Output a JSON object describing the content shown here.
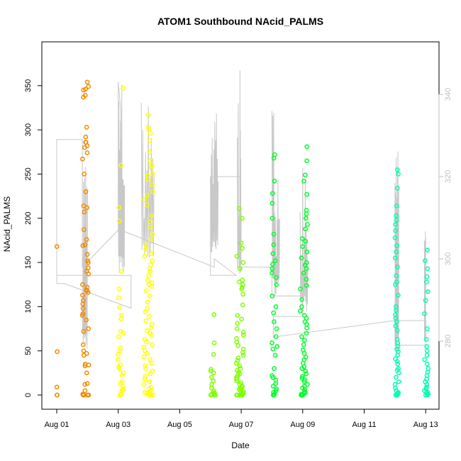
{
  "chart_data": {
    "type": "scatter",
    "title": "ATOM1 Southbound NAcid_PALMS",
    "xlabel": "Date",
    "ylabel": "NAcid_PALMS",
    "x_axis_kind": "date",
    "xlim": [
      "2016-08-01",
      "2016-08-13"
    ],
    "ylim": [
      0,
      360
    ],
    "x_ticks": [
      "2016-08-01",
      "2016-08-03",
      "2016-08-05",
      "2016-08-07",
      "2016-08-09",
      "2016-08-11",
      "2016-08-13"
    ],
    "x_tick_labels": [
      "Aug 01",
      "Aug 03",
      "Aug 05",
      "Aug 07",
      "Aug 09",
      "Aug 11",
      "Aug 13"
    ],
    "y_ticks": [
      0,
      50,
      100,
      150,
      200,
      250,
      300,
      350
    ],
    "y_tick_labels": [
      "0",
      "50",
      "100",
      "150",
      "200",
      "250",
      "300",
      "350"
    ],
    "secondary_axis": {
      "side": "right",
      "color": "#bfbfbf",
      "ticks": [
        280,
        300,
        320,
        340
      ],
      "tick_labels": [
        "280",
        "300",
        "320",
        "340"
      ],
      "ylim": [
        263,
        348
      ],
      "line_color": "#c8c8c8",
      "path": [
        [
          "2016-08-01 00:00",
          316
        ],
        [
          "2016-08-01 00:00",
          325
        ],
        [
          "2016-08-01 00:00",
          294
        ],
        [
          "2016-08-01 06:00",
          294
        ],
        [
          "2016-08-03 10:00",
          288
        ],
        [
          "2016-08-03 10:00",
          296
        ],
        [
          "2016-08-01 00:00",
          296
        ],
        [
          "2016-08-01 00:00",
          329
        ],
        [
          "2016-08-01 20:00",
          329
        ],
        [
          "2016-08-01 20:00",
          298
        ],
        [
          "2016-08-03 00:00",
          307
        ],
        [
          "2016-08-03 00:00",
          343
        ],
        [
          "2016-08-03 02:00",
          336
        ],
        [
          "2016-08-03 02:00",
          307
        ],
        [
          "2016-08-06 03:00",
          298
        ],
        [
          "2016-08-06 03:00",
          300
        ],
        [
          "2016-08-06 20:00",
          296
        ],
        [
          "2016-08-06 00:00",
          296
        ],
        [
          "2016-08-06 00:00",
          320
        ],
        [
          "2016-08-06 23:00",
          320
        ],
        [
          "2016-08-06 23:00",
          298
        ],
        [
          "2016-08-08 00:00",
          298
        ],
        [
          "2016-08-08 00:00",
          291
        ],
        [
          "2016-08-09 00:00",
          291
        ],
        [
          "2016-08-09 00:00",
          286
        ],
        [
          "2016-08-08 01:00",
          286
        ],
        [
          "2016-08-08 01:00",
          281
        ],
        [
          "2016-08-12 00:00",
          285
        ],
        [
          "2016-08-13 00:00",
          285
        ],
        [
          "2016-08-13 00:00",
          279
        ],
        [
          "2016-08-12 00:00",
          279
        ],
        [
          "2016-08-12 00:00",
          284
        ]
      ],
      "spike_bursts": [
        {
          "start": "2016-08-01 20:00",
          "end": "2016-08-02 00:00",
          "low": 278,
          "high": 330
        },
        {
          "start": "2016-08-03 00:00",
          "end": "2016-08-03 05:00",
          "low": 296,
          "high": 346
        },
        {
          "start": "2016-08-03 18:00",
          "end": "2016-08-04 04:00",
          "low": 300,
          "high": 340
        },
        {
          "start": "2016-08-06 00:00",
          "end": "2016-08-06 06:00",
          "low": 300,
          "high": 347
        },
        {
          "start": "2016-08-06 21:00",
          "end": "2016-08-07 00:00",
          "low": 296,
          "high": 346
        },
        {
          "start": "2016-08-08 00:00",
          "end": "2016-08-08 06:00",
          "low": 291,
          "high": 339
        },
        {
          "start": "2016-08-08 22:00",
          "end": "2016-08-09 04:00",
          "low": 286,
          "high": 337
        },
        {
          "start": "2016-08-12 00:00",
          "end": "2016-08-12 03:00",
          "low": 276,
          "high": 328
        },
        {
          "start": "2016-08-12 23:00",
          "end": "2016-08-13 00:00",
          "low": 279,
          "high": 307
        }
      ]
    },
    "series": [
      {
        "color": "#f28a00",
        "clusters": [
          {
            "start": "2016-08-01 00:00",
            "end": "2016-08-01 00:30",
            "values": [
              168,
              49,
              9,
              0,
              0
            ]
          },
          {
            "start": "2016-08-01 20:00",
            "end": "2016-08-02 01:00",
            "values": [
              354,
              349,
              346,
              345,
              339,
              337,
              303,
              292,
              286,
              286,
              282,
              280,
              274,
              267,
              250,
              230,
              214,
              212,
              207,
              187,
              176,
              170,
              169,
              159,
              152,
              150,
              144,
              140,
              137,
              125,
              122,
              119,
              118,
              116,
              113,
              107,
              103,
              98,
              92,
              90,
              85,
              75,
              72,
              57,
              50,
              47,
              45,
              35,
              34,
              33,
              25,
              13,
              12,
              5,
              1,
              0,
              0,
              0,
              0
            ]
          }
        ]
      },
      {
        "color": "#ffff00",
        "clusters": [
          {
            "start": "2016-08-03 00:00",
            "end": "2016-08-03 04:00",
            "values": [
              347,
              260,
              212,
              197,
              140,
              120,
              110,
              99,
              90,
              86,
              72,
              70,
              66,
              53,
              50,
              46,
              40,
              34,
              32,
              30,
              25,
              22,
              15,
              13,
              10,
              7,
              5,
              3,
              1,
              0,
              0
            ]
          },
          {
            "start": "2016-08-03 20:00",
            "end": "2016-08-04 03:00",
            "values": [
              317,
              303,
              300,
              296,
              288,
              275,
              265,
              260,
              257,
              250,
              248,
              244,
              238,
              230,
              226,
              221,
              215,
              203,
              196,
              190,
              182,
              176,
              170,
              165,
              160,
              157,
              152,
              147,
              143,
              140,
              135,
              130,
              127,
              125,
              123,
              118,
              112,
              105,
              98,
              94,
              89,
              84,
              80,
              76,
              73,
              70,
              67,
              63,
              60,
              57,
              54,
              50,
              47,
              43,
              40,
              36,
              33,
              30,
              27,
              24,
              21,
              18,
              15,
              12,
              9,
              7,
              5,
              3,
              2,
              1,
              0,
              0,
              0,
              0
            ]
          }
        ]
      },
      {
        "color": "#7fff00",
        "clusters": [
          {
            "start": "2016-08-06 00:00",
            "end": "2016-08-06 04:00",
            "values": [
              91,
              59,
              46,
              29,
              27,
              25,
              20,
              16,
              12,
              8,
              5,
              3,
              2,
              1,
              0,
              0,
              0
            ]
          },
          {
            "start": "2016-08-06 20:00",
            "end": "2016-08-07 02:00",
            "values": [
              211,
              200,
              172,
              166,
              157,
              150,
              143,
              130,
              128,
              125,
              122,
              120,
              114,
              102,
              90,
              86,
              81,
              75,
              71,
              68,
              64,
              60,
              56,
              52,
              48,
              45,
              42,
              39,
              36,
              33,
              30,
              28,
              26,
              24,
              22,
              20,
              18,
              16,
              14,
              12,
              10,
              9,
              8,
              7,
              6,
              5,
              4,
              3,
              2,
              1,
              0,
              0,
              0,
              0,
              0,
              0,
              0
            ]
          }
        ]
      },
      {
        "color": "#00ff2a",
        "clusters": [
          {
            "start": "2016-08-08 00:00",
            "end": "2016-08-08 04:00",
            "values": [
              272,
              268,
              242,
              228,
              217,
              200,
              182,
              170,
              160,
              152,
              148,
              143,
              138,
              133,
              125,
              112,
              100,
              93,
              83,
              75,
              66,
              59,
              55,
              52,
              45,
              30,
              22,
              20,
              17,
              13,
              10,
              7,
              5,
              3,
              1,
              0,
              0
            ]
          },
          {
            "start": "2016-08-08 22:00",
            "end": "2016-08-09 04:00",
            "values": [
              281,
              265,
              249,
              242,
              227,
              209,
              205,
              200,
              193,
              188,
              177,
              174,
              168,
              162,
              155,
              150,
              147,
              143,
              138,
              131,
              124,
              120,
              108,
              100,
              95,
              90,
              87,
              83,
              80,
              76,
              70,
              66,
              62,
              57,
              51,
              47,
              43,
              40,
              36,
              32,
              30,
              27,
              24,
              21,
              19,
              17,
              15,
              12,
              10,
              8,
              6,
              4,
              3,
              2,
              1,
              0,
              0,
              0
            ]
          }
        ]
      },
      {
        "color": "#00ffb0",
        "clusters": [
          {
            "start": "2016-08-12 00:00",
            "end": "2016-08-12 03:00",
            "values": [
              255,
              250,
              234,
              214,
              203,
              198,
              193,
              186,
              178,
              169,
              162,
              155,
              145,
              135,
              128,
              125,
              113,
              100,
              96,
              91,
              87,
              83,
              78,
              73,
              63,
              59,
              55,
              52,
              49,
              45,
              41,
              38,
              35,
              30,
              28,
              25,
              20,
              15,
              12,
              8,
              5,
              3,
              2,
              1,
              0,
              0,
              0
            ]
          },
          {
            "start": "2016-08-12 23:00",
            "end": "2016-08-13 02:00",
            "values": [
              164,
              152,
              143,
              134,
              128,
              117,
              107,
              92,
              75,
              63,
              55,
              50,
              45,
              40,
              35,
              30,
              26,
              22,
              18,
              15,
              12,
              9,
              7,
              5,
              3,
              2,
              1,
              0,
              0
            ]
          }
        ]
      }
    ],
    "grid": false,
    "marker": "open-circle"
  }
}
